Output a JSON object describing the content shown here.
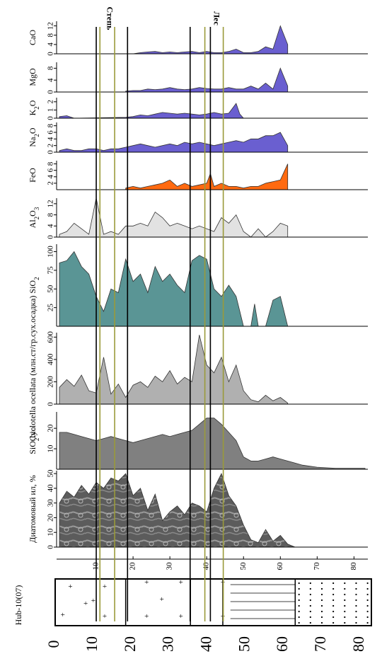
{
  "chart_data": {
    "type": "area",
    "title": "",
    "orientation": "rotated-90-ccw",
    "depth_axis": {
      "ticks": [
        10,
        20,
        30,
        40,
        50,
        60,
        70,
        80
      ],
      "range": [
        0,
        83
      ]
    },
    "core_log": {
      "label": "Hub-10(07)",
      "ticks": [
        0,
        10,
        20,
        30,
        40,
        50,
        60,
        70,
        80
      ]
    },
    "zone_labels": [
      "Степь",
      "Лес"
    ],
    "boundary_lines": {
      "black": [
        10,
        18.5,
        35.5,
        41
      ],
      "olive": [
        11,
        15,
        39.5,
        44.5
      ]
    },
    "panels": [
      {
        "id": "diatom",
        "label": "Диатомовый ил, %",
        "ticks": [
          0,
          10,
          20,
          30,
          40,
          50
        ],
        "range": [
          0,
          52
        ],
        "color": "#555555",
        "texture": true,
        "x": [
          0,
          2,
          4,
          6,
          8,
          10,
          12,
          14,
          16,
          18,
          20,
          22,
          24,
          26,
          28,
          30,
          32,
          34,
          36,
          38,
          40,
          42,
          44,
          46,
          48,
          50,
          52,
          54,
          56,
          58,
          60,
          62,
          64
        ],
        "values": [
          30,
          38,
          34,
          42,
          36,
          44,
          40,
          47,
          45,
          50,
          35,
          40,
          25,
          36,
          18,
          24,
          28,
          22,
          30,
          28,
          24,
          40,
          50,
          35,
          28,
          15,
          5,
          3,
          12,
          4,
          8,
          2,
          0
        ]
      },
      {
        "id": "sio2bio",
        "label": "SiO2bio",
        "ticks": [
          10,
          20
        ],
        "range": [
          0,
          28
        ],
        "color": "#808080",
        "texture": false,
        "x": [
          0,
          2,
          4,
          6,
          8,
          10,
          12,
          14,
          16,
          18,
          20,
          22,
          24,
          26,
          28,
          30,
          32,
          34,
          36,
          38,
          40,
          42,
          44,
          46,
          48,
          50,
          52,
          54,
          56,
          58,
          60,
          62,
          64,
          66,
          70,
          75,
          80,
          83
        ],
        "values": [
          18,
          18,
          17,
          16,
          15,
          14,
          15,
          16,
          15,
          14,
          13,
          14,
          15,
          16,
          17,
          16,
          17,
          18,
          19,
          22,
          25,
          25,
          22,
          18,
          14,
          6,
          4,
          4,
          5,
          6,
          5,
          4,
          3,
          2,
          1,
          0.5,
          0.5,
          0.5
        ]
      },
      {
        "id": "cyclotella",
        "label": "Cyclotella ocellata (млн.ст/гр.сух.осадка)",
        "ticks": [
          0,
          200,
          400,
          600
        ],
        "range": [
          0,
          640
        ],
        "color": "#b0b0b0",
        "texture": false,
        "x": [
          0,
          2,
          4,
          6,
          8,
          10,
          12,
          14,
          16,
          18,
          20,
          22,
          24,
          26,
          28,
          30,
          32,
          34,
          36,
          38,
          40,
          42,
          44,
          46,
          48,
          50,
          52,
          54,
          56,
          58,
          60,
          62
        ],
        "values": [
          150,
          220,
          160,
          260,
          120,
          100,
          420,
          90,
          180,
          60,
          170,
          200,
          150,
          250,
          200,
          300,
          180,
          240,
          200,
          620,
          350,
          280,
          420,
          200,
          350,
          120,
          40,
          20,
          80,
          30,
          60,
          10
        ]
      },
      {
        "id": "sio2",
        "label": "SiO2",
        "ticks": [
          25,
          50,
          75,
          100
        ],
        "range": [
          0,
          110
        ],
        "color": "#5a9595",
        "texture": false,
        "x": [
          0,
          2,
          4,
          6,
          8,
          10,
          12,
          14,
          16,
          18,
          20,
          22,
          24,
          26,
          28,
          30,
          32,
          34,
          36,
          38,
          40,
          42,
          44,
          46,
          48,
          50,
          52,
          53,
          54,
          56,
          58,
          60,
          62
        ],
        "values": [
          85,
          88,
          100,
          80,
          70,
          40,
          20,
          50,
          45,
          90,
          60,
          70,
          45,
          80,
          60,
          70,
          55,
          45,
          88,
          95,
          90,
          50,
          40,
          55,
          40,
          0,
          0,
          30,
          0,
          0,
          35,
          40,
          0
        ]
      },
      {
        "id": "al2o3",
        "label": "Al2O3",
        "ticks": [
          0,
          4,
          8,
          12
        ],
        "range": [
          0,
          14
        ],
        "color": "#e2e2e2",
        "texture": false,
        "x": [
          0,
          2,
          4,
          6,
          8,
          10,
          12,
          14,
          16,
          18,
          20,
          22,
          24,
          26,
          28,
          30,
          32,
          34,
          36,
          38,
          40,
          42,
          44,
          46,
          48,
          50,
          52,
          54,
          56,
          58,
          60,
          62
        ],
        "values": [
          1,
          2,
          5,
          3,
          1,
          14,
          1,
          2,
          1,
          4,
          4,
          5,
          4,
          9,
          7,
          4,
          5,
          4,
          3,
          4,
          3,
          2,
          7,
          5,
          8,
          2,
          0,
          3,
          0,
          2,
          5,
          4
        ]
      },
      {
        "id": "feo",
        "label": "FeO",
        "ticks": [
          2,
          4,
          6,
          8
        ],
        "range": [
          0,
          9
        ],
        "color": "#ff6a10",
        "texture": false,
        "x": [
          18,
          20,
          22,
          24,
          26,
          28,
          30,
          32,
          34,
          36,
          38,
          40,
          41,
          42,
          44,
          46,
          48,
          50,
          52,
          54,
          56,
          58,
          60,
          62
        ],
        "values": [
          0.5,
          1,
          0.5,
          1,
          1.5,
          2,
          3,
          1,
          2,
          1,
          1.5,
          2,
          5,
          1,
          2,
          1,
          1,
          0.5,
          1,
          1,
          2,
          2.5,
          3,
          8
        ]
      },
      {
        "id": "na2o",
        "label": "Na2O",
        "ticks": [
          0,
          2,
          4,
          6,
          8
        ],
        "range": [
          0,
          9
        ],
        "color": "#6a5fd0",
        "texture": false,
        "x": [
          0,
          2,
          4,
          6,
          8,
          10,
          12,
          14,
          16,
          18,
          20,
          22,
          24,
          26,
          28,
          30,
          32,
          34,
          36,
          38,
          40,
          42,
          44,
          46,
          48,
          50,
          52,
          54,
          56,
          58,
          60,
          62
        ],
        "values": [
          0.5,
          1,
          0.5,
          0.5,
          1,
          1,
          0.5,
          1,
          1,
          1.5,
          2,
          2.5,
          2,
          1.5,
          2,
          2.5,
          2,
          3,
          2.5,
          3,
          2.5,
          2,
          2.5,
          3,
          3.5,
          3,
          4,
          4,
          5,
          5,
          6,
          2
        ]
      },
      {
        "id": "k2o",
        "label": "K2O",
        "ticks": [
          0,
          1,
          2
        ],
        "range": [
          0,
          2.5
        ],
        "color": "#6a5fd0",
        "texture": false,
        "x": [
          0,
          2,
          4,
          18,
          20,
          22,
          24,
          26,
          28,
          30,
          32,
          34,
          36,
          38,
          40,
          42,
          44,
          46,
          48,
          49,
          50
        ],
        "values": [
          0.2,
          0.3,
          0,
          0.1,
          0.2,
          0.4,
          0.3,
          0.5,
          0.7,
          0.6,
          0.5,
          0.6,
          0.5,
          0.4,
          0.5,
          0.7,
          0.5,
          0.6,
          1.8,
          0.5,
          0
        ]
      },
      {
        "id": "mgo",
        "label": "MgO",
        "ticks": [
          0,
          4,
          8
        ],
        "range": [
          0,
          10
        ],
        "color": "#6a5fd0",
        "texture": false,
        "x": [
          18,
          20,
          22,
          24,
          26,
          28,
          30,
          32,
          34,
          36,
          38,
          40,
          42,
          44,
          46,
          48,
          50,
          52,
          54,
          56,
          58,
          60,
          62
        ],
        "values": [
          0.3,
          0.5,
          0.5,
          1,
          0.8,
          1,
          1.5,
          1,
          0.8,
          1,
          1.5,
          1.2,
          1,
          1,
          1.5,
          1,
          1,
          2,
          1,
          3,
          1,
          8,
          2
        ]
      },
      {
        "id": "cao",
        "label": "CaO",
        "ticks": [
          0,
          4,
          8,
          12
        ],
        "range": [
          0,
          14
        ],
        "color": "#6a5fd0",
        "texture": false,
        "x": [
          20,
          22,
          24,
          26,
          28,
          30,
          32,
          34,
          36,
          38,
          40,
          42,
          44,
          46,
          48,
          50,
          52,
          54,
          56,
          58,
          60,
          62
        ],
        "values": [
          0,
          0.5,
          0.8,
          1,
          0.5,
          0.8,
          0.5,
          0.8,
          1,
          0.5,
          1,
          0.5,
          0.5,
          1,
          2,
          0.5,
          0.5,
          1,
          3,
          2,
          12,
          4
        ]
      }
    ]
  }
}
